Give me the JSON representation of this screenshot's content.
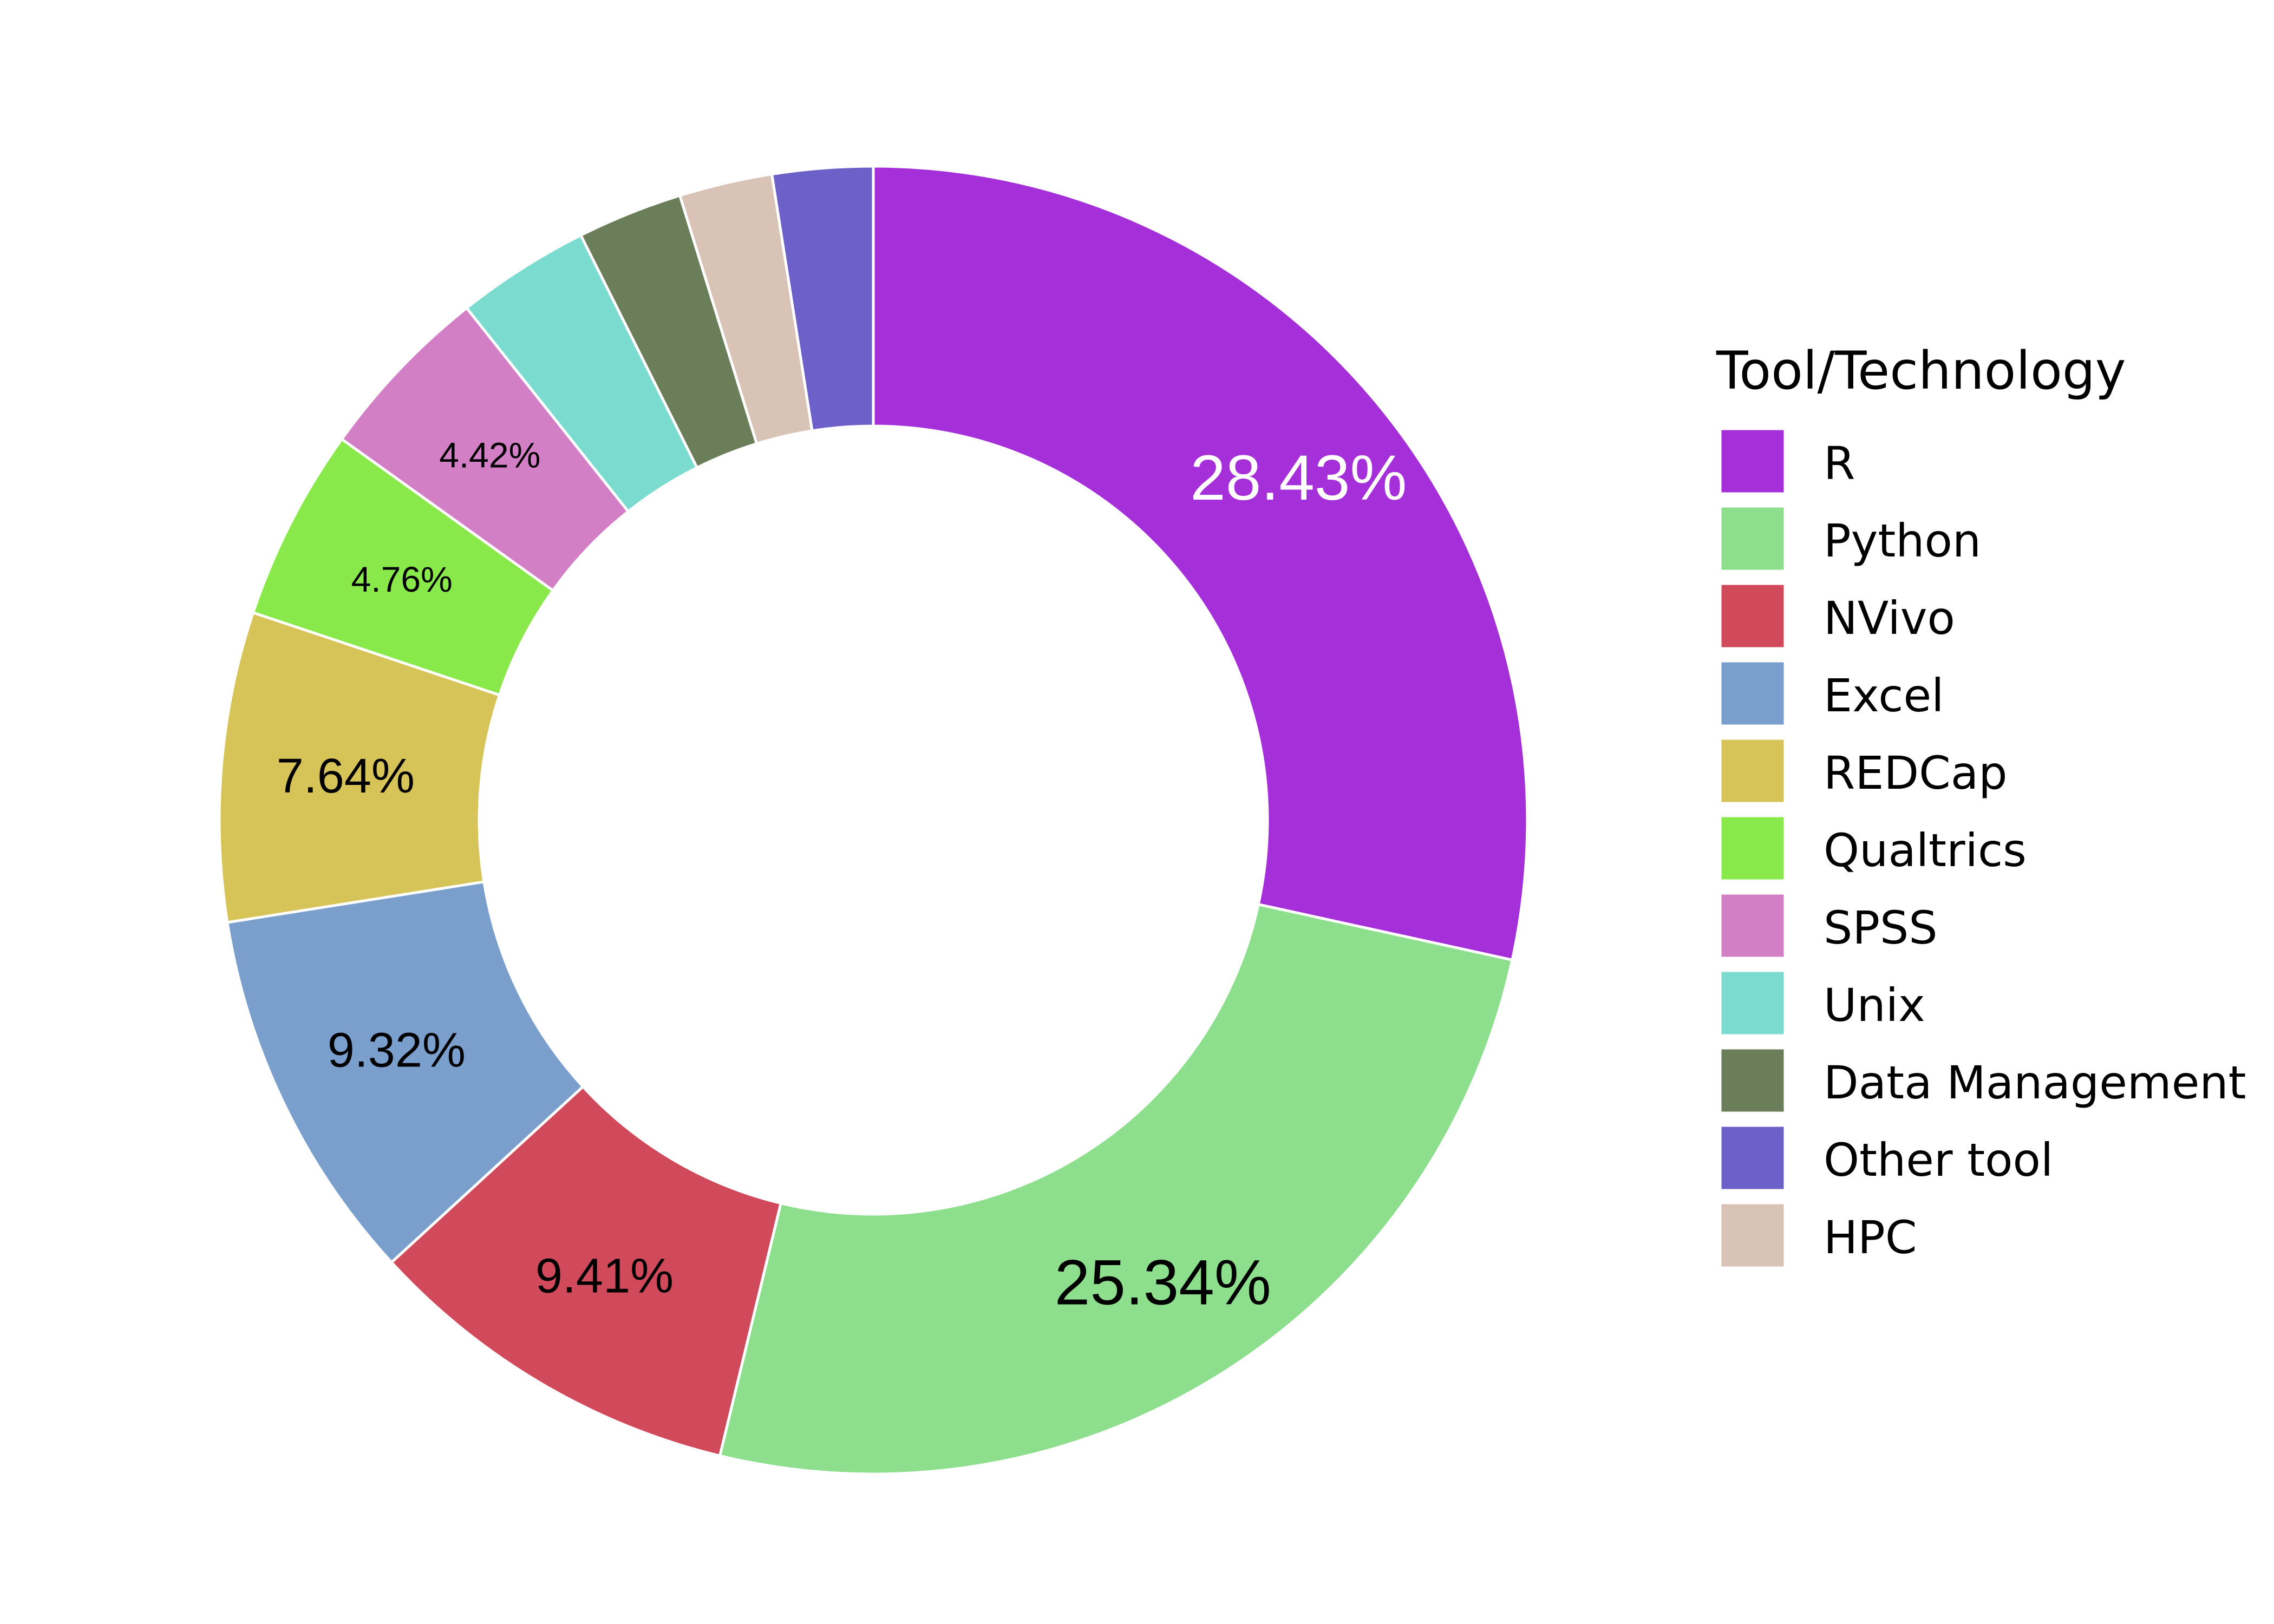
{
  "chart_data": {
    "type": "pie",
    "donut": true,
    "legend": {
      "title": "Tool/Technology",
      "position": "right"
    },
    "slices": [
      {
        "name": "R",
        "value": 28.43,
        "label": "28.43%",
        "color": "#A52FD8",
        "label_color": "#FFFFFF"
      },
      {
        "name": "Python",
        "value": 25.34,
        "label": "25.34%",
        "color": "#8DDF8E",
        "label_color": "#000000"
      },
      {
        "name": "NVivo",
        "value": 9.41,
        "label": "9.41%",
        "color": "#D14A5C",
        "label_color": "#000000"
      },
      {
        "name": "Excel",
        "value": 9.32,
        "label": "9.32%",
        "color": "#7B9FCD",
        "label_color": "#000000"
      },
      {
        "name": "REDCap",
        "value": 7.64,
        "label": "7.64%",
        "color": "#D7C458",
        "label_color": "#000000"
      },
      {
        "name": "Qualtrics",
        "value": 4.76,
        "label": "4.76%",
        "color": "#89E94B",
        "label_color": "#000000"
      },
      {
        "name": "SPSS",
        "value": 4.42,
        "label": "4.42%",
        "color": "#D37FC5",
        "label_color": "#000000"
      },
      {
        "name": "Unix",
        "value": 3.3,
        "label": "",
        "color": "#7BDBCE",
        "label_color": "#000000"
      },
      {
        "name": "Data Management",
        "value": 2.6,
        "label": "",
        "color": "#6B7E5A",
        "label_color": "#000000"
      },
      {
        "name": "HPC",
        "value": 2.3,
        "label": "",
        "color": "#D9C2B6",
        "label_color": "#000000"
      },
      {
        "name": "Other tool",
        "value": 2.48,
        "label": "",
        "color": "#6E60C9",
        "label_color": "#000000"
      }
    ],
    "legend_order": [
      "R",
      "Python",
      "NVivo",
      "Excel",
      "REDCap",
      "Qualtrics",
      "SPSS",
      "Unix",
      "Data Management",
      "Other tool",
      "HPC"
    ]
  }
}
